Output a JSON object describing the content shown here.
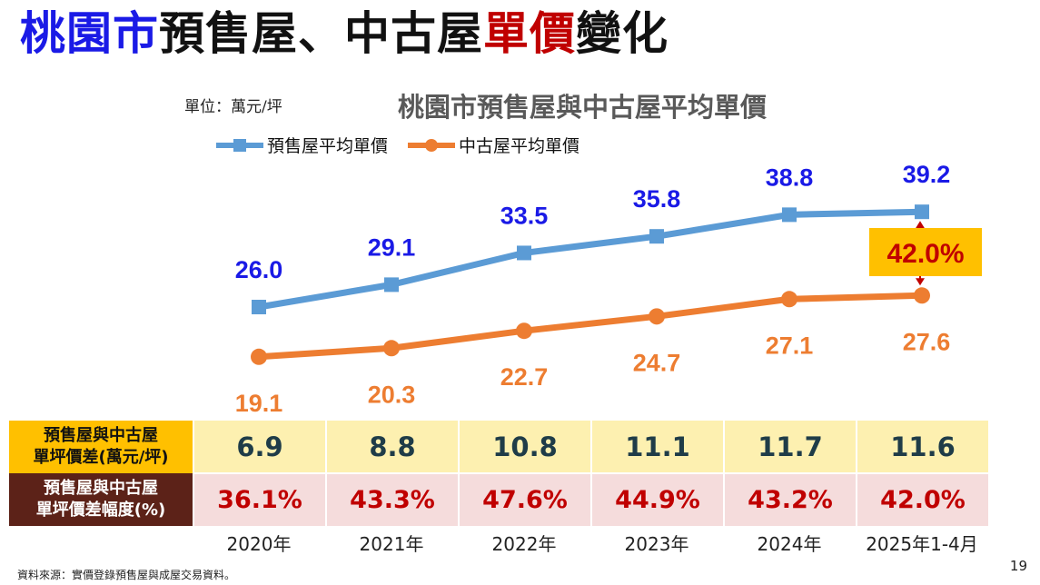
{
  "title": {
    "part1": "桃園市",
    "part2": "預售屋、中古屋",
    "part3": "單價",
    "part4": "變化"
  },
  "unit_label": "單位：萬元/坪",
  "chart_data": {
    "type": "line",
    "title": "桃園市預售屋與中古屋平均單價",
    "categories": [
      "2020年",
      "2021年",
      "2022年",
      "2023年",
      "2024年",
      "2025年1-4月"
    ],
    "series": [
      {
        "name": "預售屋平均單價",
        "color": "#5b9bd5",
        "label_color": "#1a1ae6",
        "marker": "square",
        "values": [
          26.0,
          29.1,
          33.5,
          35.8,
          38.8,
          39.2
        ],
        "labels": [
          "26.0",
          "29.1",
          "33.5",
          "35.8",
          "38.8",
          "39.2"
        ]
      },
      {
        "name": "中古屋平均單價",
        "color": "#ed7d31",
        "label_color": "#ed7d31",
        "marker": "circle",
        "values": [
          19.1,
          20.3,
          22.7,
          24.7,
          27.1,
          27.6
        ],
        "labels": [
          "19.1",
          "20.3",
          "22.7",
          "24.7",
          "27.1",
          "27.6"
        ]
      }
    ],
    "annotation": {
      "text": "42.0%",
      "bg": "#ffc000",
      "color": "#c00000"
    },
    "legend_position": "top-left",
    "grid": false
  },
  "table": {
    "row1_header": [
      "預售屋與中古屋",
      "單坪價差(萬元/坪)"
    ],
    "row1": [
      "6.9",
      "8.8",
      "10.8",
      "11.1",
      "11.7",
      "11.6"
    ],
    "row2_header": [
      "預售屋與中古屋",
      "單坪價差幅度(%)"
    ],
    "row2": [
      "36.1%",
      "43.3%",
      "47.6%",
      "44.9%",
      "43.2%",
      "42.0%"
    ]
  },
  "footer": {
    "source": "資料來源：實價登錄預售屋與成屋交易資料。",
    "page": "19"
  }
}
